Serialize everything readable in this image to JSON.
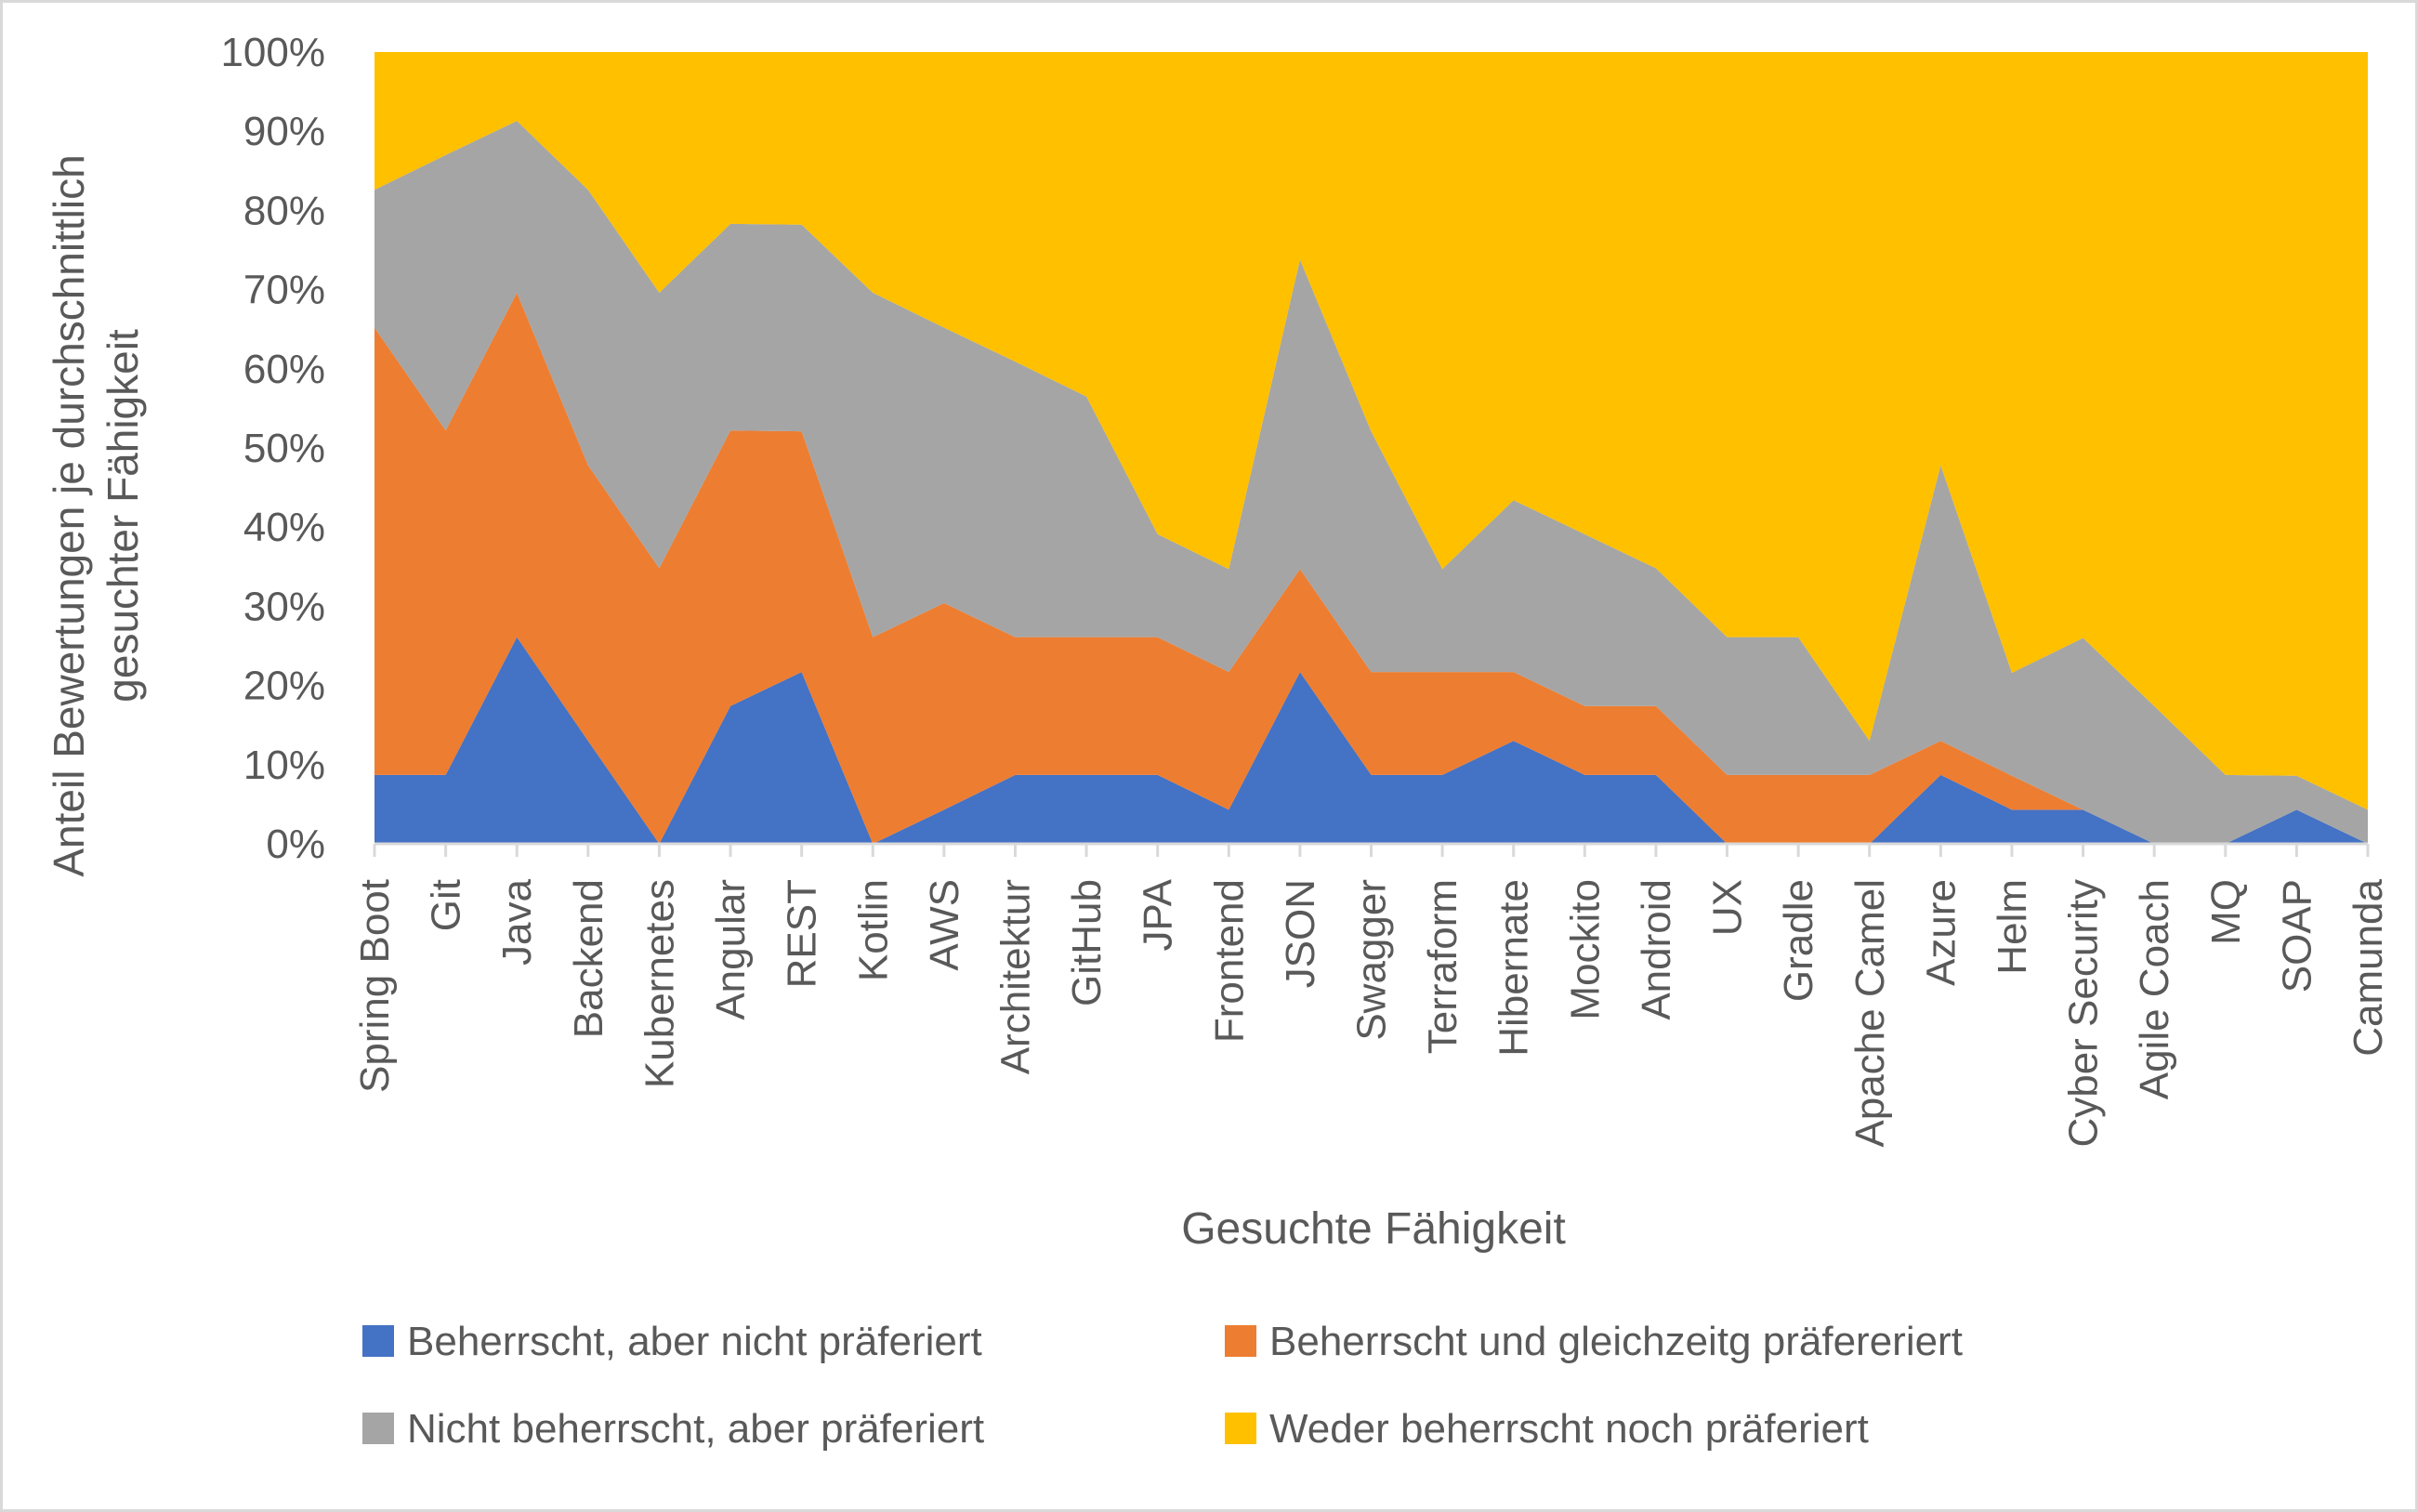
{
  "chart_data": {
    "type": "area",
    "stacked": "percent",
    "xlabel": "Gesuchte Fähigkeit",
    "ylabel_lines": [
      "Anteil Bewertungen je durchschnittlich",
      "gesuchter Fähigkeit"
    ],
    "ylim": [
      0,
      100
    ],
    "yticks": [
      "0%",
      "10%",
      "20%",
      "30%",
      "40%",
      "50%",
      "60%",
      "70%",
      "80%",
      "90%",
      "100%"
    ],
    "grid": false,
    "legend_position": "bottom",
    "categories": [
      "Spring Boot",
      "Git",
      "Java",
      "Backend",
      "Kubernetes",
      "Angular",
      "REST",
      "Kotlin",
      "AWS",
      "Architektur",
      "GitHub",
      "JPA",
      "Frontend",
      "JSON",
      "Swagger",
      "Terraform",
      "Hibernate",
      "Mockito",
      "Android",
      "UX",
      "Gradle",
      "Apache Camel",
      "Azure",
      "Helm",
      "Cyber Security",
      "Agile Coach",
      "MQ",
      "SOAP",
      "Camunda"
    ],
    "series": [
      {
        "name": "Beherrscht, aber nicht präferiert",
        "color": "#4472C4",
        "values": [
          8.7,
          8.7,
          26.1,
          13.0,
          0,
          17.4,
          21.7,
          0,
          4.3,
          8.7,
          8.7,
          8.7,
          4.3,
          21.7,
          8.7,
          8.7,
          13.0,
          8.7,
          8.7,
          0,
          0,
          0,
          8.7,
          4.3,
          4.3,
          0,
          0,
          4.3,
          0
        ]
      },
      {
        "name": "Beherrscht und gleichzeitg präfereriert",
        "color": "#ED7D31",
        "values": [
          56.5,
          43.5,
          43.5,
          34.8,
          34.8,
          34.8,
          30.4,
          26.1,
          26.1,
          17.4,
          17.4,
          17.4,
          17.4,
          13.0,
          13.0,
          13.0,
          8.7,
          8.7,
          8.7,
          8.7,
          8.7,
          8.7,
          4.3,
          4.3,
          0,
          0,
          0,
          0,
          0
        ]
      },
      {
        "name": "Nicht beherrscht, aber präferiert",
        "color": "#A5A5A5",
        "values": [
          17.4,
          34.8,
          21.7,
          34.8,
          34.8,
          26.1,
          26.1,
          43.5,
          34.8,
          34.8,
          30.4,
          13.0,
          13.0,
          39.1,
          30.4,
          13.0,
          21.7,
          21.7,
          17.4,
          17.4,
          17.4,
          4.3,
          34.8,
          13.0,
          21.7,
          17.4,
          8.7,
          4.3,
          4.3
        ]
      },
      {
        "name": "Weder beherrscht noch präferiert",
        "color": "#FFC000",
        "values": [
          17.4,
          13.0,
          8.7,
          17.4,
          30.4,
          21.7,
          21.8,
          30.4,
          34.8,
          39.1,
          43.5,
          60.9,
          65.3,
          26.2,
          47.9,
          65.3,
          56.6,
          60.9,
          65.2,
          73.9,
          73.9,
          87.0,
          52.2,
          78.4,
          74.0,
          82.6,
          91.3,
          91.4,
          95.7
        ]
      }
    ]
  }
}
